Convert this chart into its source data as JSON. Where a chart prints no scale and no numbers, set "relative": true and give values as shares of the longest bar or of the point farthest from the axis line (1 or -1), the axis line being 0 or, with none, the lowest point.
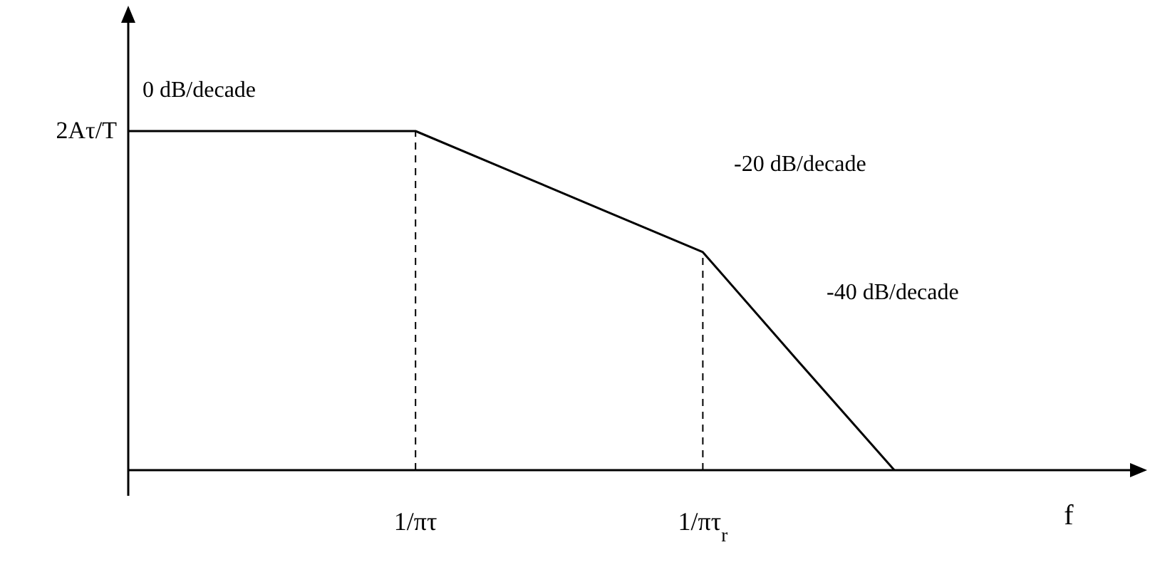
{
  "chart_data": {
    "type": "line",
    "relative": true,
    "xlabel": "f",
    "categories": [
      null,
      null,
      null,
      "1/πτ",
      null,
      null,
      "1/πτ$_{r}$",
      null,
      null,
      null,
      null
    ],
    "series": [
      {
        "color": "#000000",
        "values": [
          1,
          1,
          1,
          1,
          0.881,
          0.762,
          0.643,
          0.32,
          0,
          null,
          null
        ]
      }
    ],
    "ref_lines": [
      {
        "axis": "x",
        "value": "1/πτ",
        "line_style": "dashed",
        "color": "#000000"
      },
      {
        "axis": "x",
        "value": "1/πτ$_{r}$",
        "line_style": "dashed",
        "color": "#000000"
      }
    ],
    "annotations": [
      "0 dB/decade",
      "-20 dB/decade",
      "-40 dB/decade",
      "2Aτ/T"
    ],
    "marker": "none",
    "line_style": "solid"
  }
}
